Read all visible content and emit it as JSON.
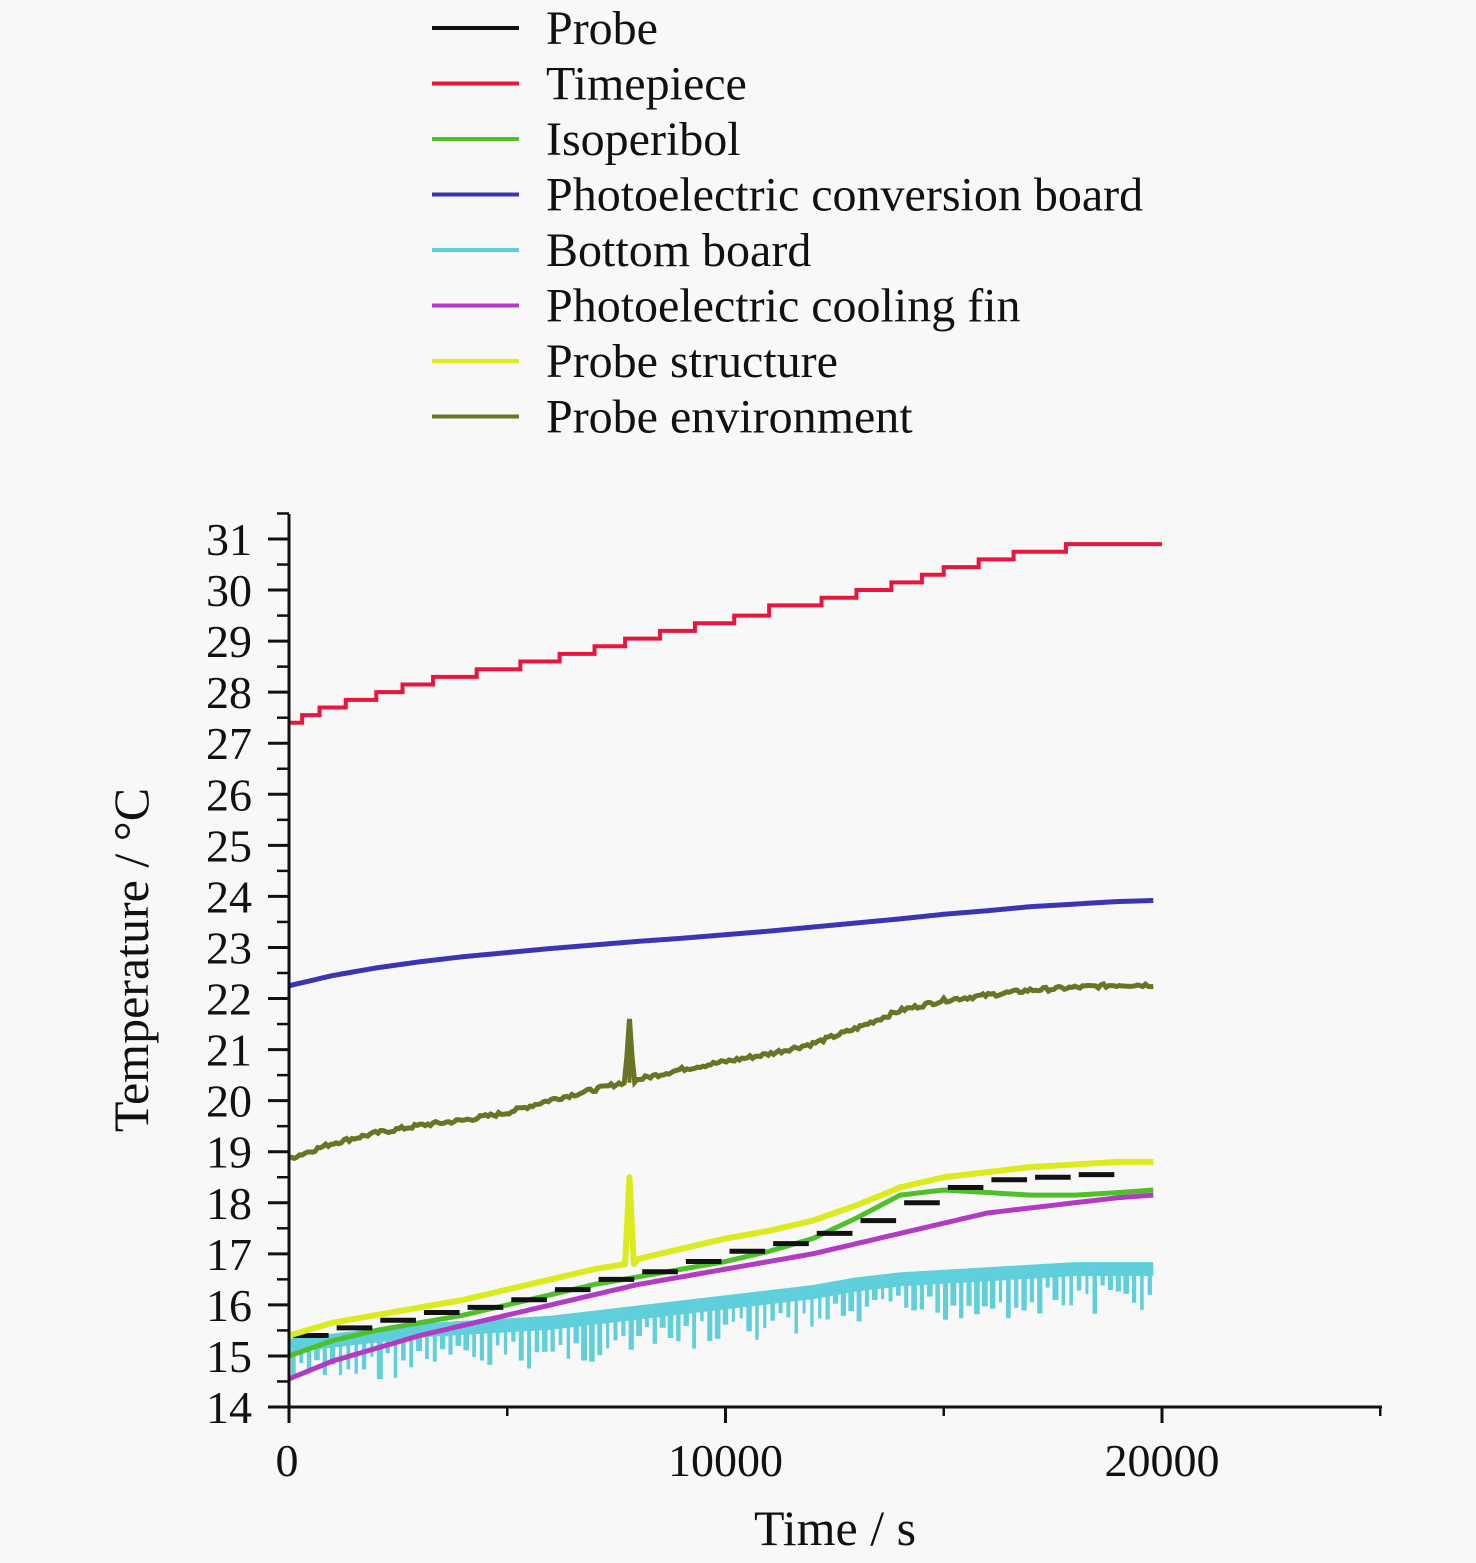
{
  "chart_data": {
    "type": "line",
    "title": "",
    "xlabel": "Time / s",
    "ylabel": "Temperature / °C",
    "xlim": [
      0,
      25000
    ],
    "ylim": [
      14,
      31.5
    ],
    "x_ticks": [
      0,
      10000,
      20000
    ],
    "x_minor_ticks": [
      5000,
      15000,
      25000
    ],
    "y_ticks": [
      14,
      15,
      16,
      17,
      18,
      19,
      20,
      21,
      22,
      23,
      24,
      25,
      26,
      27,
      28,
      29,
      30,
      31
    ],
    "grid": false,
    "legend_position": "top",
    "series": [
      {
        "name": "Probe",
        "color": "#111111",
        "style": "dashed-steps",
        "x": [
          0,
          1000,
          2000,
          3000,
          4000,
          5000,
          6000,
          7000,
          8000,
          9000,
          10000,
          11000,
          12000,
          13000,
          14000,
          15000,
          16000,
          17000,
          18000,
          19000
        ],
        "y": [
          15.4,
          15.55,
          15.7,
          15.85,
          15.95,
          16.1,
          16.3,
          16.5,
          16.65,
          16.85,
          17.05,
          17.2,
          17.4,
          17.65,
          18.0,
          18.3,
          18.45,
          18.5,
          18.55,
          18.6
        ]
      },
      {
        "name": "Timepiece",
        "color": "#e8163c",
        "style": "steps",
        "x": [
          0,
          300,
          700,
          1300,
          2000,
          2600,
          3300,
          4300,
          5300,
          6200,
          7000,
          7700,
          8500,
          9300,
          10200,
          11000,
          12200,
          13000,
          13800,
          14500,
          15000,
          15800,
          16600,
          17800,
          18800,
          20000
        ],
        "y": [
          27.4,
          27.55,
          27.7,
          27.85,
          28.0,
          28.15,
          28.3,
          28.45,
          28.6,
          28.75,
          28.9,
          29.05,
          29.2,
          29.35,
          29.5,
          29.7,
          29.85,
          30.0,
          30.15,
          30.3,
          30.45,
          30.6,
          30.75,
          30.9,
          30.9,
          30.9
        ]
      },
      {
        "name": "Isoperibol",
        "color": "#4fbf2a",
        "style": "line",
        "x": [
          0,
          1000,
          2000,
          3000,
          4000,
          5000,
          6000,
          7000,
          8000,
          9000,
          10000,
          11000,
          12000,
          13000,
          14000,
          15000,
          16000,
          17000,
          18000,
          19000,
          19800
        ],
        "y": [
          15.0,
          15.3,
          15.5,
          15.65,
          15.8,
          16.0,
          16.2,
          16.4,
          16.55,
          16.7,
          16.85,
          17.05,
          17.3,
          17.7,
          18.15,
          18.25,
          18.2,
          18.15,
          18.15,
          18.2,
          18.25
        ]
      },
      {
        "name": "Photoelectric conversion board",
        "color": "#3b35b5",
        "style": "line",
        "x": [
          0,
          1000,
          2000,
          3000,
          4000,
          5000,
          6000,
          7000,
          8000,
          9000,
          10000,
          11000,
          12000,
          13000,
          14000,
          15000,
          16000,
          17000,
          18000,
          19000,
          19800
        ],
        "y": [
          22.25,
          22.45,
          22.6,
          22.72,
          22.82,
          22.9,
          22.98,
          23.05,
          23.12,
          23.18,
          23.25,
          23.32,
          23.4,
          23.48,
          23.56,
          23.65,
          23.72,
          23.8,
          23.85,
          23.9,
          23.92
        ]
      },
      {
        "name": "Bottom board",
        "color": "#5fcfdc",
        "style": "noisy",
        "x": [
          0,
          1000,
          2000,
          3000,
          4000,
          5000,
          6000,
          7000,
          8000,
          9000,
          10000,
          11000,
          12000,
          13000,
          14000,
          15000,
          16000,
          17000,
          18000,
          19000,
          19800
        ],
        "y": [
          15.2,
          15.3,
          15.4,
          15.5,
          15.55,
          15.6,
          15.65,
          15.75,
          15.85,
          15.95,
          16.05,
          16.15,
          16.25,
          16.4,
          16.5,
          16.55,
          16.6,
          16.65,
          16.7,
          16.7,
          16.7
        ]
      },
      {
        "name": "Photoelectric cooling fin",
        "color": "#b13bc3",
        "style": "line",
        "x": [
          0,
          1000,
          2000,
          3000,
          4000,
          5000,
          6000,
          7000,
          8000,
          9000,
          10000,
          11000,
          12000,
          13000,
          14000,
          15000,
          16000,
          17000,
          18000,
          19000,
          19800
        ],
        "y": [
          14.55,
          14.9,
          15.15,
          15.4,
          15.6,
          15.8,
          16.0,
          16.2,
          16.4,
          16.55,
          16.7,
          16.85,
          17.0,
          17.2,
          17.4,
          17.6,
          17.8,
          17.9,
          18.0,
          18.1,
          18.15
        ]
      },
      {
        "name": "Probe structure",
        "color": "#dbeb1e",
        "style": "line",
        "x": [
          0,
          1000,
          2000,
          3000,
          4000,
          5000,
          6000,
          7000,
          7700,
          7800,
          7900,
          8000,
          9000,
          10000,
          11000,
          12000,
          13000,
          14000,
          15000,
          16000,
          17000,
          18000,
          19000,
          19800
        ],
        "y": [
          15.4,
          15.65,
          15.8,
          15.95,
          16.1,
          16.3,
          16.5,
          16.7,
          16.8,
          18.5,
          16.8,
          16.9,
          17.1,
          17.3,
          17.45,
          17.65,
          17.95,
          18.3,
          18.5,
          18.6,
          18.7,
          18.75,
          18.8,
          18.8
        ]
      },
      {
        "name": "Probe environment",
        "color": "#6b7424",
        "style": "noisy-line",
        "x": [
          0,
          1000,
          2000,
          3000,
          4000,
          5000,
          6000,
          7000,
          7700,
          7800,
          7900,
          8000,
          9000,
          10000,
          11000,
          12000,
          13000,
          14000,
          15000,
          16000,
          17000,
          18000,
          19000,
          19800
        ],
        "y": [
          18.85,
          19.15,
          19.35,
          19.5,
          19.6,
          19.75,
          20.0,
          20.2,
          20.35,
          21.6,
          20.35,
          20.4,
          20.6,
          20.75,
          20.9,
          21.1,
          21.4,
          21.75,
          21.95,
          22.05,
          22.15,
          22.2,
          22.25,
          22.25
        ]
      }
    ]
  }
}
